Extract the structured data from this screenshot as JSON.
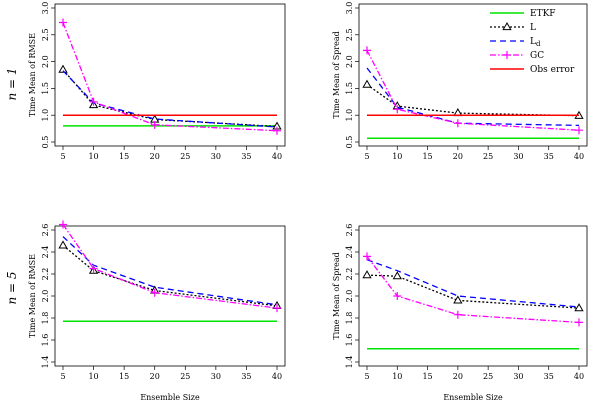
{
  "figure": {
    "row_labels": [
      "n = 1",
      "n = 5"
    ],
    "legend": {
      "placement": "top-right of upper-right panel",
      "entries": [
        {
          "label": "ETKF",
          "series": "ETKF"
        },
        {
          "label": "L",
          "series": "L"
        },
        {
          "label": "L",
          "sub": "d",
          "series": "Ld"
        },
        {
          "label": "GC",
          "series": "GC"
        },
        {
          "label": "Obs error",
          "series": "Obs error"
        }
      ]
    },
    "styles": {
      "ETKF": {
        "color": "#00e400",
        "dash": "",
        "marker": "none",
        "width": 1.5
      },
      "L": {
        "color": "#000000",
        "dash": "2,2",
        "marker": "triangle",
        "width": 1.3
      },
      "Ld": {
        "color": "#0000ff",
        "dash": "6,4",
        "marker": "none",
        "width": 1.3
      },
      "GC": {
        "color": "#ff00ff",
        "dash": "6,2,1.5,2",
        "marker": "plus",
        "width": 1.3
      },
      "Obs error": {
        "color": "#ff0000",
        "dash": "",
        "marker": "none",
        "width": 1.5
      }
    }
  },
  "chart_data": [
    {
      "type": "line",
      "panel": "n1-rmse",
      "xlabel": "",
      "ylabel": "Time Mean of RMSE",
      "xlim": [
        5,
        40
      ],
      "ylim": [
        0.5,
        3.0
      ],
      "xticks": [
        5,
        10,
        15,
        20,
        25,
        30,
        35,
        40
      ],
      "yticks": [
        0.5,
        1.0,
        1.5,
        2.0,
        2.5,
        3.0
      ],
      "x": [
        5,
        10,
        20,
        40
      ],
      "series": [
        {
          "key": "ETKF",
          "values": [
            0.8,
            0.8,
            0.8,
            0.8
          ]
        },
        {
          "key": "L",
          "values": [
            1.85,
            1.19,
            0.92,
            0.79
          ]
        },
        {
          "key": "Ld",
          "values": [
            1.83,
            1.23,
            0.93,
            0.78
          ]
        },
        {
          "key": "GC",
          "values": [
            2.73,
            1.25,
            0.82,
            0.71
          ]
        },
        {
          "key": "Obs error",
          "values": [
            1.0,
            1.0,
            1.0,
            1.0
          ]
        }
      ]
    },
    {
      "type": "line",
      "panel": "n1-spread",
      "xlabel": "",
      "ylabel": "Time Mean of Spread",
      "xlim": [
        5,
        40
      ],
      "ylim": [
        0.5,
        3.0
      ],
      "xticks": [
        5,
        10,
        15,
        20,
        25,
        30,
        35,
        40
      ],
      "yticks": [
        0.5,
        1.0,
        1.5,
        2.0,
        2.5,
        3.0
      ],
      "x": [
        5,
        10,
        20,
        40
      ],
      "series": [
        {
          "key": "ETKF",
          "values": [
            0.57,
            0.57,
            0.57,
            0.57
          ]
        },
        {
          "key": "L",
          "values": [
            1.57,
            1.17,
            1.04,
            0.99
          ]
        },
        {
          "key": "Ld",
          "values": [
            1.88,
            1.15,
            0.85,
            0.81
          ]
        },
        {
          "key": "GC",
          "values": [
            2.21,
            1.11,
            0.85,
            0.72
          ]
        },
        {
          "key": "Obs error",
          "values": [
            1.0,
            1.0,
            1.0,
            1.0
          ]
        }
      ]
    },
    {
      "type": "line",
      "panel": "n5-rmse",
      "xlabel": "Ensemble Size",
      "ylabel": "Time Mean of RMSE",
      "xlim": [
        5,
        40
      ],
      "ylim": [
        1.4,
        2.6
      ],
      "xticks": [
        5,
        10,
        15,
        20,
        25,
        30,
        35,
        40
      ],
      "yticks": [
        1.4,
        1.6,
        1.8,
        2.0,
        2.2,
        2.4,
        2.6
      ],
      "x": [
        5,
        10,
        20,
        40
      ],
      "series": [
        {
          "key": "ETKF",
          "values": [
            1.77,
            1.77,
            1.77,
            1.77
          ]
        },
        {
          "key": "L",
          "values": [
            2.46,
            2.23,
            2.05,
            1.91
          ]
        },
        {
          "key": "Ld",
          "values": [
            2.54,
            2.28,
            2.08,
            1.92
          ]
        },
        {
          "key": "GC",
          "values": [
            2.65,
            2.25,
            2.03,
            1.89
          ]
        }
      ]
    },
    {
      "type": "line",
      "panel": "n5-spread",
      "xlabel": "Ensemble Size",
      "ylabel": "Time Mean of Spread",
      "xlim": [
        5,
        40
      ],
      "ylim": [
        1.4,
        2.6
      ],
      "xticks": [
        5,
        10,
        15,
        20,
        25,
        30,
        35,
        40
      ],
      "yticks": [
        1.4,
        1.6,
        1.8,
        2.0,
        2.2,
        2.4,
        2.6
      ],
      "x": [
        5,
        10,
        20,
        40
      ],
      "series": [
        {
          "key": "ETKF",
          "values": [
            1.52,
            1.52,
            1.52,
            1.52
          ]
        },
        {
          "key": "L",
          "values": [
            2.19,
            2.18,
            1.96,
            1.89
          ]
        },
        {
          "key": "Ld",
          "values": [
            2.33,
            2.23,
            2.0,
            1.9
          ]
        },
        {
          "key": "GC",
          "values": [
            2.36,
            2.0,
            1.83,
            1.76
          ]
        }
      ]
    }
  ]
}
